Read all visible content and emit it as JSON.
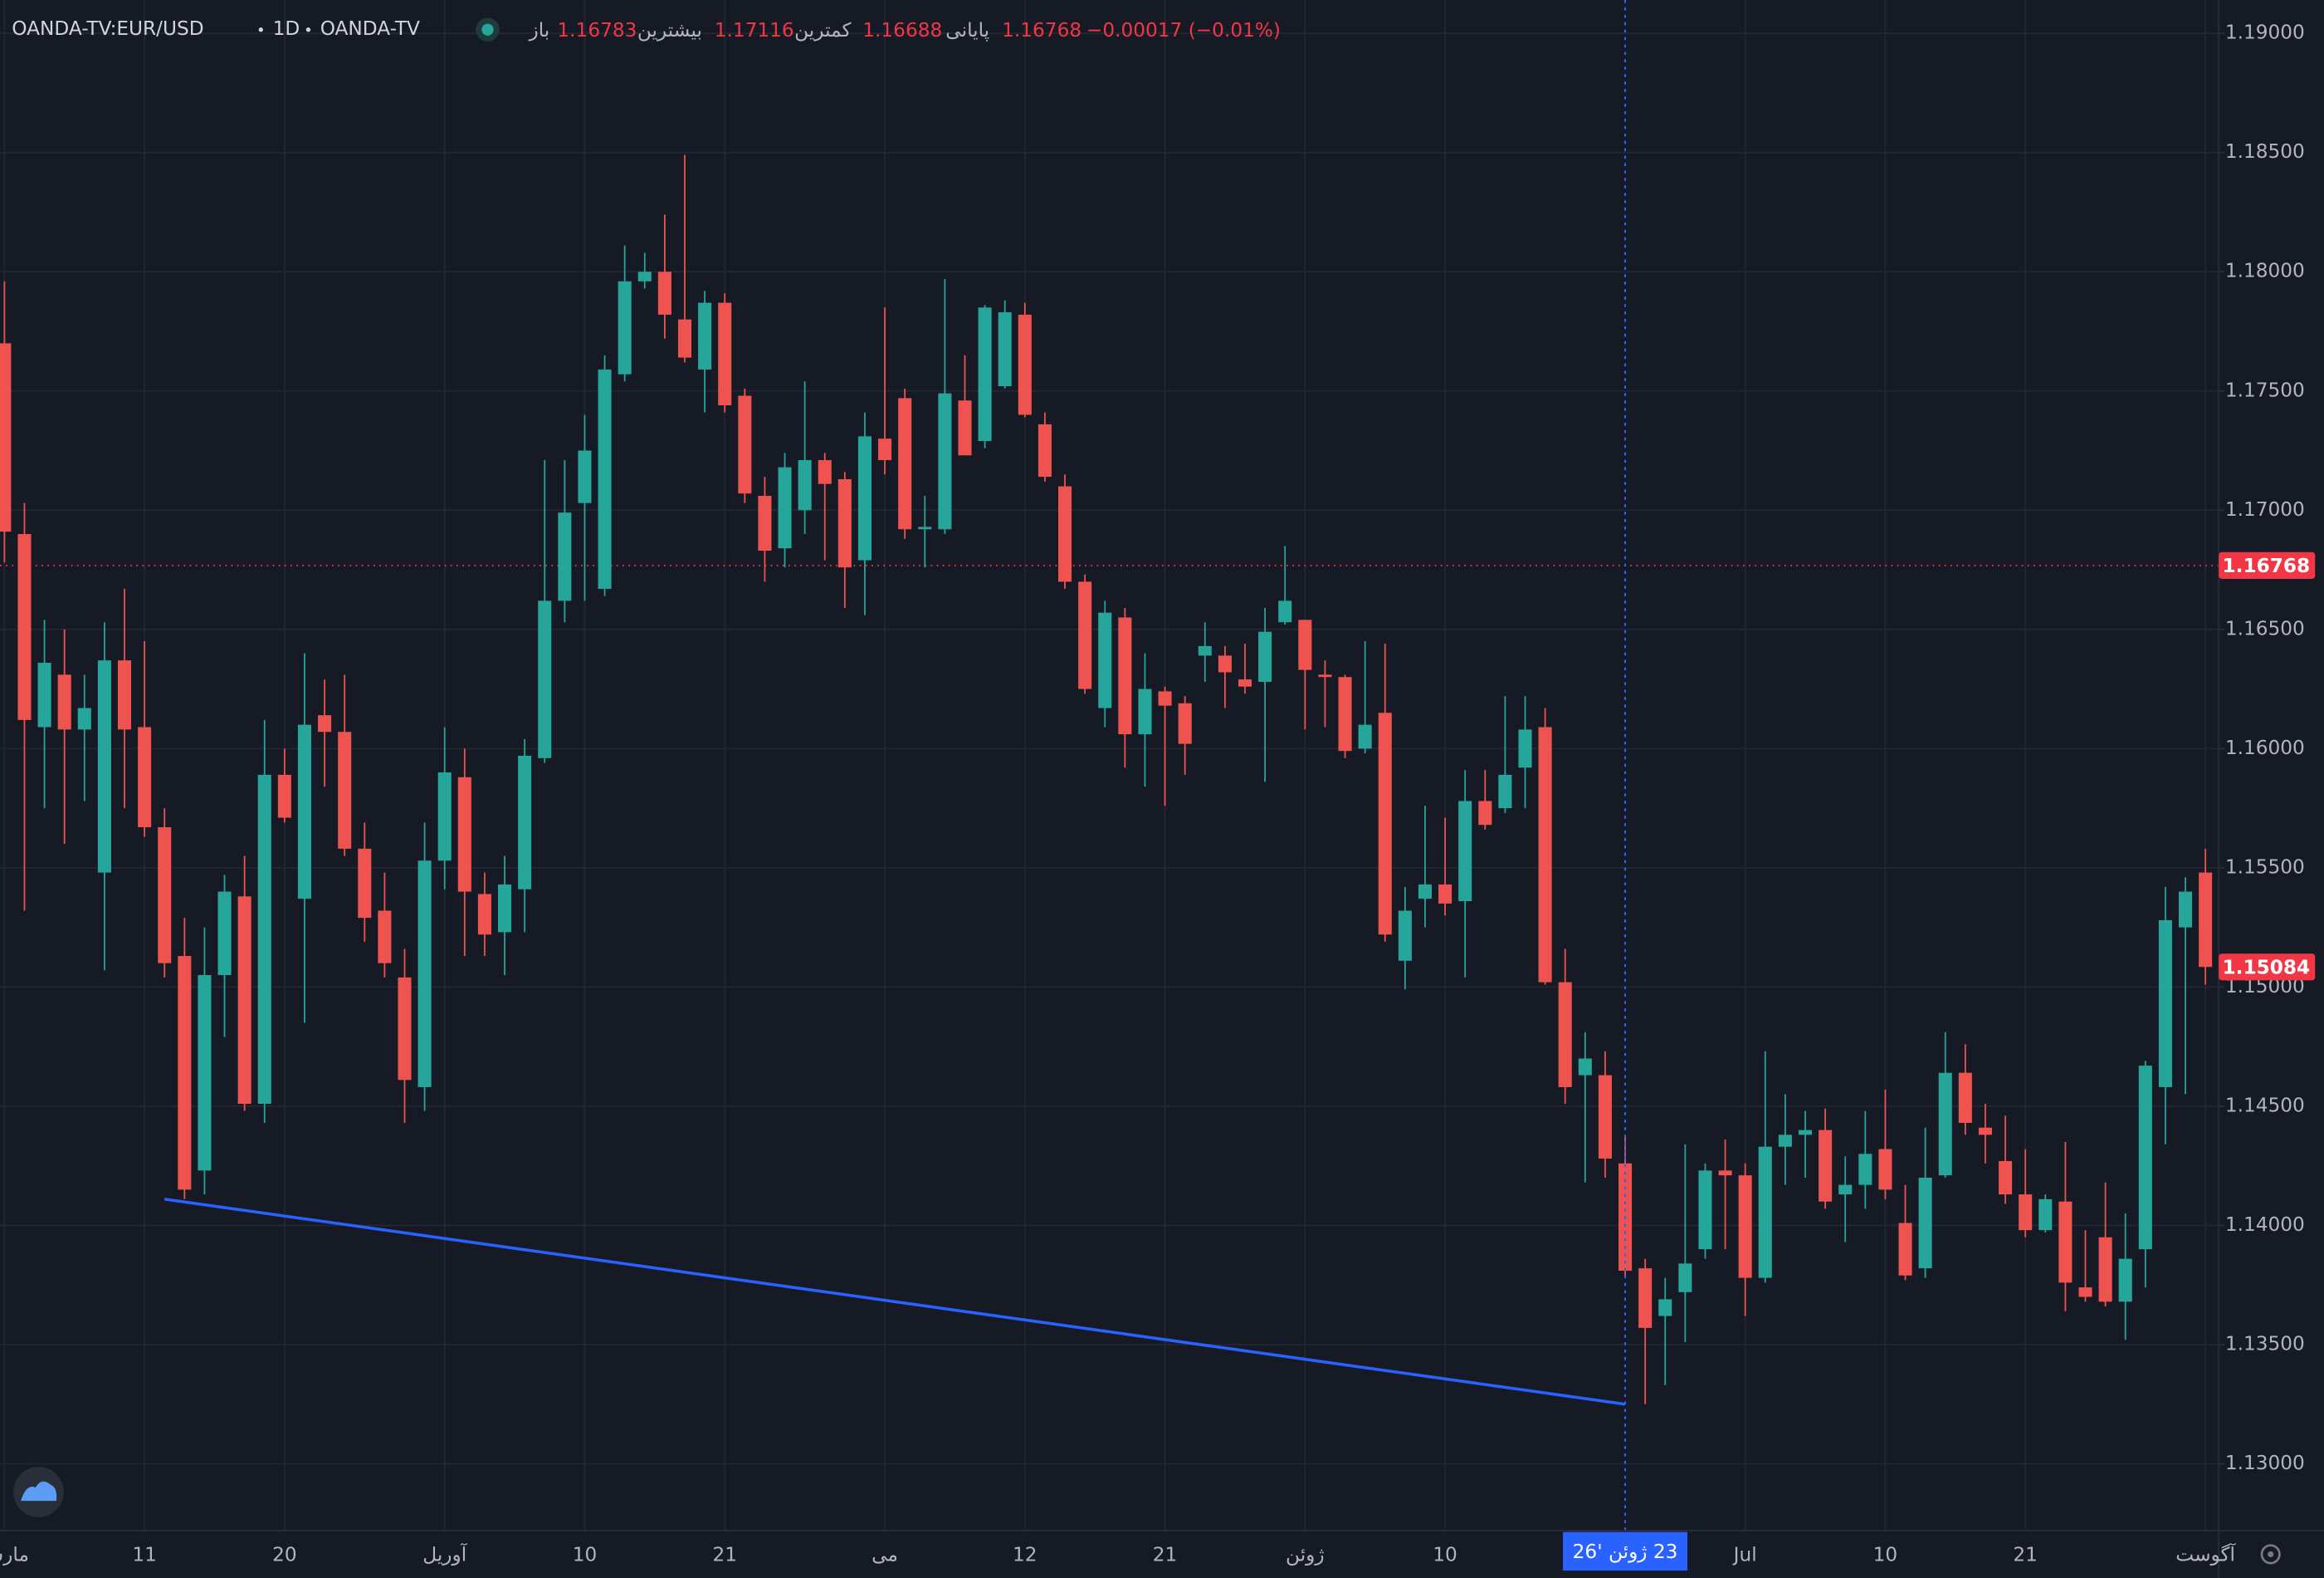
{
  "header": {
    "symbol": "OANDA-TV:EUR/USD",
    "interval": "1D",
    "exchange": "OANDA-TV",
    "ohlc": [
      {
        "label": "باز",
        "value": "1.16783"
      },
      {
        "label": "بیشترین",
        "value": "1.17116"
      },
      {
        "label": "کمترین",
        "value": "1.16688"
      },
      {
        "label": "پایانی",
        "value": "1.16768"
      }
    ],
    "change": "−0.00017 (−0.01%)"
  },
  "chart_data": {
    "type": "candlestick",
    "up_color": "#26a69a",
    "down_color": "#ef5350",
    "grid": true,
    "categories": [
      "مارس",
      null,
      null,
      null,
      null,
      null,
      null,
      "11",
      null,
      null,
      null,
      null,
      null,
      null,
      "20",
      null,
      null,
      null,
      null,
      null,
      null,
      null,
      "آوریل",
      null,
      null,
      null,
      null,
      null,
      null,
      "10",
      null,
      null,
      null,
      null,
      null,
      null,
      "21",
      null,
      null,
      null,
      null,
      null,
      null,
      null,
      "می",
      null,
      null,
      null,
      null,
      null,
      null,
      "12",
      null,
      null,
      null,
      null,
      null,
      null,
      "21",
      null,
      null,
      null,
      null,
      null,
      null,
      "ژوئن",
      null,
      null,
      null,
      null,
      null,
      null,
      "10",
      null,
      null,
      null,
      null,
      null,
      null,
      null,
      null,
      null,
      null,
      null,
      null,
      null,
      null,
      "Jul",
      null,
      null,
      null,
      null,
      null,
      null,
      "10",
      null,
      null,
      null,
      null,
      null,
      null,
      "21",
      null,
      null,
      null,
      null,
      null,
      null,
      null,
      null,
      "آگوست"
    ],
    "open": [
      1.177,
      1.169,
      1.1609,
      1.1631,
      1.1608,
      1.1548,
      1.1637,
      1.1609,
      1.1567,
      1.1513,
      1.1423,
      1.1505,
      1.1538,
      1.1451,
      1.1589,
      1.1537,
      1.1614,
      1.1607,
      1.1558,
      1.1532,
      1.1504,
      1.1458,
      1.1553,
      1.1588,
      1.1539,
      1.1523,
      1.1541,
      1.1596,
      1.1662,
      1.1703,
      1.1667,
      1.1757,
      1.1796,
      1.18,
      1.178,
      1.1759,
      1.1787,
      1.1748,
      1.1706,
      1.1684,
      1.17,
      1.1721,
      1.1713,
      1.1679,
      1.173,
      1.1747,
      1.1692,
      1.1692,
      1.1746,
      1.1729,
      1.1752,
      1.1782,
      1.1736,
      1.171,
      1.167,
      1.1617,
      1.1655,
      1.1606,
      1.1624,
      1.1619,
      1.1639,
      1.1639,
      1.1629,
      1.1628,
      1.1653,
      1.1654,
      1.1631,
      1.163,
      1.16,
      1.1615,
      1.1511,
      1.1537,
      1.1543,
      1.1536,
      1.1578,
      1.1575,
      1.1592,
      1.1609,
      1.1502,
      1.1463,
      1.1463,
      1.1426,
      1.1382,
      1.1362,
      1.1372,
      1.139,
      1.1423,
      1.1421,
      1.1378,
      1.1433,
      1.1438,
      1.144,
      1.1413,
      1.1417,
      1.1432,
      1.1401,
      1.1382,
      1.1421,
      1.1464,
      1.1441,
      1.1427,
      1.1413,
      1.1398,
      1.141,
      1.1374,
      1.1395,
      1.1368,
      1.139,
      1.1458,
      1.1525,
      1.1548
    ],
    "high": [
      1.1796,
      1.1703,
      1.1654,
      1.165,
      1.1631,
      1.1653,
      1.1667,
      1.1645,
      1.1575,
      1.1529,
      1.1525,
      1.1547,
      1.1555,
      1.1612,
      1.16,
      1.164,
      1.1629,
      1.1631,
      1.1569,
      1.1548,
      1.1516,
      1.1569,
      1.1609,
      1.16,
      1.1548,
      1.1555,
      1.1604,
      1.1721,
      1.1721,
      1.174,
      1.1765,
      1.1811,
      1.1808,
      1.1824,
      1.1849,
      1.1792,
      1.1791,
      1.1751,
      1.1714,
      1.1724,
      1.1754,
      1.1724,
      1.1716,
      1.1741,
      1.1785,
      1.1751,
      1.1706,
      1.1797,
      1.1765,
      1.1786,
      1.1788,
      1.1787,
      1.1741,
      1.1715,
      1.1673,
      1.1662,
      1.1659,
      1.164,
      1.1626,
      1.1622,
      1.1653,
      1.1643,
      1.1644,
      1.1659,
      1.1685,
      1.1654,
      1.1637,
      1.1631,
      1.1645,
      1.1644,
      1.1542,
      1.1576,
      1.1571,
      1.1591,
      1.1591,
      1.1622,
      1.1622,
      1.1617,
      1.1516,
      1.1481,
      1.1473,
      1.1438,
      1.1386,
      1.1378,
      1.1434,
      1.1426,
      1.1436,
      1.1426,
      1.1473,
      1.1455,
      1.1448,
      1.1449,
      1.1429,
      1.1448,
      1.1457,
      1.1417,
      1.1441,
      1.1481,
      1.1476,
      1.1451,
      1.1446,
      1.1432,
      1.1413,
      1.1435,
      1.1398,
      1.1418,
      1.1405,
      1.1469,
      1.1542,
      1.1546,
      1.1558
    ],
    "low": [
      1.1678,
      1.1532,
      1.1575,
      1.156,
      1.1578,
      1.1507,
      1.1575,
      1.1563,
      1.1504,
      1.1411,
      1.1413,
      1.1479,
      1.1448,
      1.1443,
      1.1569,
      1.1485,
      1.1584,
      1.1555,
      1.1519,
      1.1504,
      1.1443,
      1.1448,
      1.1541,
      1.1513,
      1.1513,
      1.1505,
      1.1523,
      1.1594,
      1.1653,
      1.1662,
      1.1664,
      1.1754,
      1.1793,
      1.1772,
      1.1762,
      1.1741,
      1.1741,
      1.1703,
      1.167,
      1.1676,
      1.169,
      1.1679,
      1.1659,
      1.1656,
      1.1715,
      1.1688,
      1.1676,
      1.169,
      1.1723,
      1.1726,
      1.1751,
      1.1739,
      1.1712,
      1.1667,
      1.1623,
      1.1609,
      1.1592,
      1.1584,
      1.1576,
      1.1589,
      1.1628,
      1.1617,
      1.1623,
      1.1586,
      1.1652,
      1.1608,
      1.1609,
      1.1596,
      1.1598,
      1.1519,
      1.1499,
      1.1525,
      1.153,
      1.1504,
      1.1566,
      1.1573,
      1.1575,
      1.1501,
      1.1451,
      1.1418,
      1.142,
      1.1378,
      1.1325,
      1.1333,
      1.1351,
      1.1386,
      1.139,
      1.1362,
      1.1376,
      1.1417,
      1.142,
      1.1407,
      1.1393,
      1.1407,
      1.1411,
      1.1377,
      1.1378,
      1.142,
      1.1438,
      1.1426,
      1.1409,
      1.1395,
      1.1397,
      1.1364,
      1.1368,
      1.1366,
      1.1352,
      1.1374,
      1.1434,
      1.1455,
      1.1501
    ],
    "close": [
      1.1691,
      1.1612,
      1.1636,
      1.1608,
      1.1617,
      1.1637,
      1.1608,
      1.1567,
      1.151,
      1.1415,
      1.1505,
      1.154,
      1.1451,
      1.1589,
      1.1571,
      1.161,
      1.1607,
      1.1558,
      1.1529,
      1.151,
      1.1461,
      1.1553,
      1.159,
      1.154,
      1.1522,
      1.1543,
      1.1597,
      1.1662,
      1.1699,
      1.1725,
      1.1759,
      1.1796,
      1.18,
      1.1782,
      1.1764,
      1.1787,
      1.1744,
      1.1707,
      1.1683,
      1.1718,
      1.1721,
      1.1711,
      1.1676,
      1.1731,
      1.1721,
      1.1692,
      1.1693,
      1.1749,
      1.1723,
      1.1785,
      1.1783,
      1.174,
      1.1714,
      1.167,
      1.1625,
      1.1657,
      1.1606,
      1.1625,
      1.1618,
      1.1602,
      1.1643,
      1.1632,
      1.1626,
      1.1649,
      1.1662,
      1.1633,
      1.163,
      1.1599,
      1.161,
      1.1522,
      1.1532,
      1.1543,
      1.1535,
      1.1578,
      1.1568,
      1.1589,
      1.1608,
      1.1502,
      1.1458,
      1.147,
      1.1428,
      1.1381,
      1.1357,
      1.1369,
      1.1384,
      1.1423,
      1.1421,
      1.1378,
      1.1433,
      1.1438,
      1.144,
      1.141,
      1.1417,
      1.143,
      1.1415,
      1.1379,
      1.142,
      1.1464,
      1.1443,
      1.1438,
      1.1413,
      1.1398,
      1.1411,
      1.1376,
      1.137,
      1.1368,
      1.1386,
      1.1467,
      1.1528,
      1.154,
      1.15084
    ],
    "ylim": [
      1.1272,
      1.1914
    ],
    "yticks": [
      {
        "value": 1.13,
        "label": "1.13000"
      },
      {
        "value": 1.135,
        "label": "1.13500"
      },
      {
        "value": 1.14,
        "label": "1.14000"
      },
      {
        "value": 1.145,
        "label": "1.14500"
      },
      {
        "value": 1.15,
        "label": "1.15000"
      },
      {
        "value": 1.155,
        "label": "1.15500"
      },
      {
        "value": 1.16,
        "label": "1.16000"
      },
      {
        "value": 1.165,
        "label": "1.16500"
      },
      {
        "value": 1.17,
        "label": "1.17000"
      },
      {
        "value": 1.175,
        "label": "1.17500"
      },
      {
        "value": 1.18,
        "label": "1.18000"
      },
      {
        "value": 1.185,
        "label": "1.18500"
      },
      {
        "value": 1.19,
        "label": "1.19000"
      }
    ],
    "price_lines": [
      {
        "value": 1.16768,
        "color": "#f23645",
        "dotted": true
      },
      {
        "value": 1.15084,
        "color": "#f23645",
        "dotted": false
      }
    ],
    "crosshair": {
      "index": 81,
      "label": "23 ژوئن '26",
      "color": "#2962ff"
    },
    "trendline": {
      "start_index": 8,
      "start_price": 1.1411,
      "end_index": 81,
      "end_price": 1.1325,
      "color": "#2962ff"
    }
  }
}
